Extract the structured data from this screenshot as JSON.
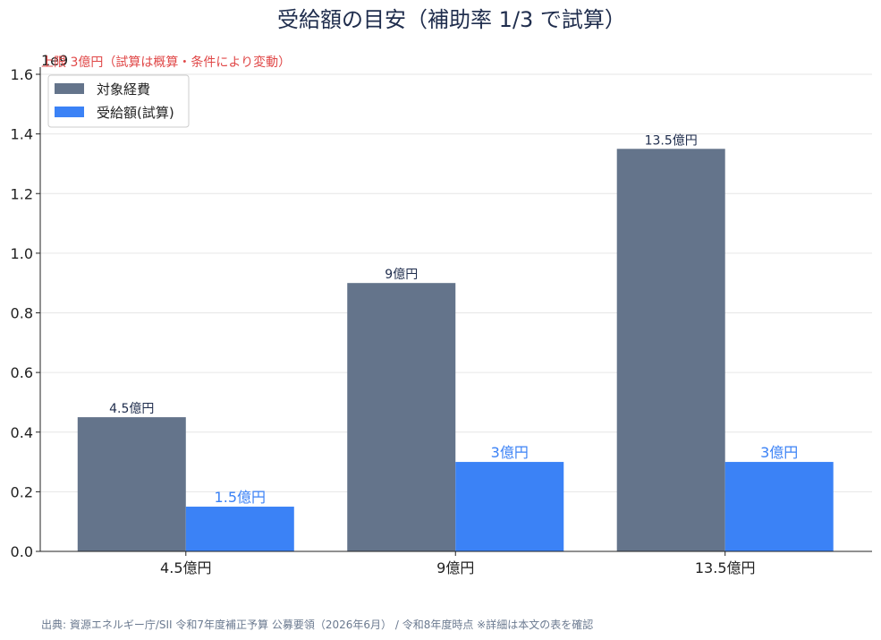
{
  "chart_data": {
    "type": "bar",
    "title": "受給額の目安（補助率 1/3 で試算）",
    "categories": [
      "4.5億円",
      "9億円",
      "13.5億円"
    ],
    "series": [
      {
        "name": "対象経費",
        "values": [
          450000000,
          900000000,
          1350000000
        ],
        "labels": [
          "4.5億円",
          "9億円",
          "13.5億円"
        ],
        "color": "#64748b"
      },
      {
        "name": "受給額(試算)",
        "values": [
          150000000,
          300000000,
          300000000
        ],
        "labels": [
          "1.5億円",
          "3億円",
          "3億円"
        ],
        "color": "#3b82f6"
      }
    ],
    "ylim": [
      0,
      1600000000
    ],
    "yticks": [
      "0.0",
      "0.2",
      "0.4",
      "0.6",
      "0.8",
      "1.0",
      "1.2",
      "1.4",
      "1.6"
    ],
    "y_offset_label": "1e9",
    "annotation": "上限 3億円（試算は概算・条件により変動）",
    "grid": true,
    "legend": "top-left"
  },
  "source": "出典: 資源エネルギー庁/SII 令和7年度補正予算 公募要領（2026年6月） / 令和8年度時点 ※詳細は本文の表を確認"
}
